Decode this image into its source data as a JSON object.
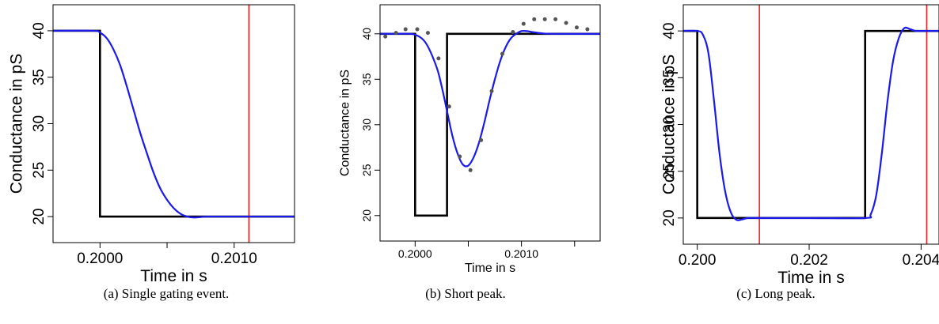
{
  "colors": {
    "step": "#000000",
    "fit": "#1a1aee",
    "marker": "#ee2222",
    "data_points": "#555555",
    "frame": "#000000"
  },
  "chart_data": [
    {
      "type": "line",
      "caption": "(a) Single gating event.",
      "xlabel": "Time in s",
      "ylabel": "Conductance in pS",
      "xlim": [
        0.19965,
        0.20145
      ],
      "ylim": [
        17.2,
        42.8
      ],
      "xticks": [
        0.2,
        0.2005,
        0.201
      ],
      "xtick_labels": [
        "0.2000",
        "",
        "0.2010"
      ],
      "yticks": [
        20,
        25,
        30,
        35,
        40
      ],
      "ytick_labels": [
        "20",
        "25",
        "30",
        "35",
        "40"
      ],
      "vlines": [
        0.20111
      ],
      "series": [
        {
          "role": "step",
          "x": [
            0.19965,
            0.2,
            0.2,
            0.20145
          ],
          "y": [
            40,
            40,
            20,
            20
          ]
        },
        {
          "role": "fit",
          "x": [
            0.19965,
            0.19995,
            0.2,
            0.20005,
            0.2001,
            0.20015,
            0.2002,
            0.20025,
            0.2003,
            0.20035,
            0.2004,
            0.20045,
            0.2005,
            0.20055,
            0.2006,
            0.20065,
            0.2007,
            0.20075,
            0.2008,
            0.2009,
            0.201,
            0.20145
          ],
          "y": [
            40,
            40,
            39.8,
            39.2,
            38.0,
            36.3,
            34.0,
            31.5,
            29.0,
            26.8,
            24.7,
            23.0,
            21.8,
            20.9,
            20.3,
            20.0,
            19.9,
            19.95,
            20,
            20,
            20,
            20
          ]
        }
      ]
    },
    {
      "type": "line",
      "caption": "(b) Short peak.",
      "xlabel": "Time in s",
      "ylabel": "Conductance in pS",
      "xlim": [
        0.19967,
        0.20174
      ],
      "ylim": [
        17.2,
        43.2
      ],
      "xticks": [
        0.2,
        0.2005,
        0.201,
        0.2015
      ],
      "xtick_labels": [
        "0.2000",
        "",
        "0.2010",
        ""
      ],
      "yticks": [
        20,
        25,
        30,
        35,
        40
      ],
      "ytick_labels": [
        "20",
        "25",
        "30",
        "35",
        "40"
      ],
      "vlines": [],
      "series": [
        {
          "role": "step",
          "x": [
            0.19967,
            0.2,
            0.2,
            0.2003,
            0.2003,
            0.20174
          ],
          "y": [
            40,
            40,
            20,
            20,
            40,
            40
          ]
        },
        {
          "role": "fit",
          "x": [
            0.19967,
            0.1999,
            0.2,
            0.2001,
            0.2002,
            0.20025,
            0.2003,
            0.20035,
            0.2004,
            0.20045,
            0.2005,
            0.20055,
            0.2006,
            0.20065,
            0.2007,
            0.20075,
            0.2008,
            0.20085,
            0.2009,
            0.20095,
            0.201,
            0.20105,
            0.2011,
            0.2012,
            0.2013,
            0.20174
          ],
          "y": [
            40,
            40,
            39.9,
            39.0,
            36.4,
            34.2,
            31.5,
            28.8,
            26.8,
            25.6,
            25.5,
            26.4,
            28.0,
            30.2,
            32.7,
            35.0,
            37.0,
            38.5,
            39.5,
            40.0,
            40.3,
            40.3,
            40.2,
            40.05,
            40,
            40
          ]
        },
        {
          "role": "points",
          "x": [
            0.19972,
            0.19982,
            0.19991,
            0.20002,
            0.20012,
            0.20022,
            0.20032,
            0.20042,
            0.20052,
            0.20062,
            0.20072,
            0.20082,
            0.20092,
            0.20102,
            0.20112,
            0.20122,
            0.20132,
            0.20142,
            0.20152,
            0.20162
          ],
          "y": [
            39.7,
            40.1,
            40.5,
            40.5,
            40.1,
            37.3,
            32.0,
            26.5,
            25.0,
            28.3,
            33.7,
            37.8,
            40.2,
            41.1,
            41.6,
            41.6,
            41.6,
            41.2,
            40.7,
            40.5
          ]
        }
      ]
    },
    {
      "type": "line",
      "caption": "(c) Long peak.",
      "xlabel": "Time in s",
      "ylabel": "Conductance in pS",
      "xlim": [
        0.19975,
        0.20432
      ],
      "ylim": [
        17.2,
        42.8
      ],
      "xticks": [
        0.2,
        0.202,
        0.204
      ],
      "xtick_labels": [
        "0.200",
        "0.202",
        "0.204"
      ],
      "yticks": [
        20,
        25,
        30,
        35,
        40
      ],
      "ytick_labels": [
        "20",
        "25",
        "30",
        "35",
        "40"
      ],
      "vlines": [
        0.20111,
        0.2041
      ],
      "series": [
        {
          "role": "step",
          "x": [
            0.19975,
            0.2,
            0.2,
            0.203,
            0.203,
            0.20432
          ],
          "y": [
            40,
            40,
            20,
            20,
            40,
            40
          ]
        },
        {
          "role": "fit",
          "x": [
            0.19975,
            0.2,
            0.2001,
            0.2002,
            0.2003,
            0.2004,
            0.2005,
            0.2006,
            0.2007,
            0.2008,
            0.2009,
            0.201,
            0.202,
            0.203,
            0.2031,
            0.2032,
            0.2033,
            0.2034,
            0.2035,
            0.2036,
            0.2037,
            0.2038,
            0.2039,
            0.204,
            0.20432
          ],
          "y": [
            40,
            40,
            39.6,
            37.6,
            32.5,
            26.8,
            22.8,
            20.6,
            19.8,
            19.85,
            20,
            20,
            20,
            20,
            20.4,
            22.5,
            27.0,
            32.5,
            36.8,
            39.2,
            40.3,
            40.2,
            40.0,
            40,
            40
          ]
        }
      ]
    }
  ]
}
